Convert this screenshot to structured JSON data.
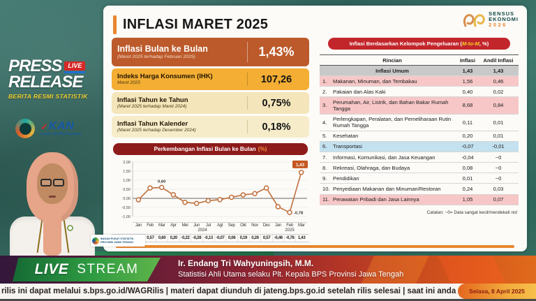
{
  "left_panel": {
    "press": "PRESS",
    "release": "RELEASE",
    "live_badge": "LIVE",
    "subtitle": "BERITA RESMI STATISTIK",
    "kan": "KAN",
    "kan_caption": "Komite Akreditasi Nasional",
    "bps_strip_line1": "BADAN PUSAT STATISTIK",
    "bps_strip_line2": "PROVINSI JAWA TENGAH"
  },
  "header": {
    "title": "INFLASI MARET 2025",
    "sensus_line1": "SENSUS",
    "sensus_line2": "EKONOMI",
    "sensus_year": "2026"
  },
  "stats": [
    {
      "label": "Inflasi Bulan ke Bulan",
      "sub": "(Maret 2025 terhadap Februari 2025)",
      "value": "1,43%"
    },
    {
      "label": "Indeks Harga Konsumen (IHK)",
      "sub": "Maret 2025",
      "value": "107,26"
    },
    {
      "label": "Inflasi Tahun ke Tahun",
      "sub": "(Maret 2025 terhadap Maret 2024)",
      "value": "0,75%"
    },
    {
      "label": "Inflasi Tahun Kalender",
      "sub": "(Maret 2025 terhadap Desember 2024)",
      "value": "0,18%"
    }
  ],
  "chart_data": {
    "type": "line",
    "title": "Perkembangan Inflasi Bulan ke Bulan",
    "title_pct": "(%)",
    "legend": "m-to-m",
    "x": [
      "Jan",
      "Feb",
      "Mar",
      "Apr",
      "Mei",
      "Jun",
      "Jul",
      "Agt",
      "Sep",
      "Okt",
      "Nov",
      "Des",
      "Jan",
      "Feb",
      "Mar"
    ],
    "year_groups": [
      {
        "label": "2024",
        "span": 12
      },
      {
        "label": "2025",
        "span": 3
      }
    ],
    "values": [
      -0.08,
      0.57,
      0.6,
      0.2,
      -0.22,
      -0.28,
      -0.13,
      -0.07,
      0.06,
      0.19,
      0.26,
      0.57,
      -0.46,
      -0.78,
      1.43
    ],
    "display_values": [
      "-0,08",
      "0,57",
      "0,60",
      "0,20",
      "-0,22",
      "-0,28",
      "-0,13",
      "-0,07",
      "0,06",
      "0,19",
      "0,26",
      "0,57",
      "-0,46",
      "-0,78",
      "1,43"
    ],
    "ylim": [
      -1.0,
      2.0
    ],
    "yticks": [
      2.0,
      1.5,
      1.0,
      0.5,
      0.0,
      -0.5,
      -1.0
    ],
    "ytick_labels": [
      "2,00",
      "1,50",
      "1,00",
      "0,50",
      "0,00",
      "-0,50",
      "-1,00"
    ],
    "grid": true,
    "line_color": "#c0703c",
    "annotations": [
      {
        "index": 2,
        "text": "0,60",
        "style": "above"
      },
      {
        "index": 13,
        "text": "-0,78",
        "style": "right"
      },
      {
        "index": 14,
        "text": "1,43",
        "style": "callout"
      }
    ]
  },
  "table": {
    "title_prefix": "Inflasi Berdasarkan Kelompok Pengeluaran (",
    "title_mtom": "M-to-M",
    "title_suffix": ", %)",
    "headers": {
      "rincian": "Rincian",
      "inflasi": "Inflasi",
      "andil": "Andil Inflasi"
    },
    "umum": {
      "name": "Inflasi Umum",
      "inflasi": "1,43",
      "andil": "1,43"
    },
    "rows": [
      {
        "no": "1.",
        "name": "Makanan, Minuman, dan Tembakau",
        "inflasi": "1,56",
        "andil": "0,46",
        "hl": "pink"
      },
      {
        "no": "2.",
        "name": "Pakaian dan Alas Kaki",
        "inflasi": "0,40",
        "andil": "0,02",
        "hl": "none"
      },
      {
        "no": "3.",
        "name": "Perumahan, Air, Listrik, dan Bahan Bakar Rumah Tangga",
        "inflasi": "8,68",
        "andil": "0,84",
        "hl": "pink"
      },
      {
        "no": "4.",
        "name": "Perlengkapan, Peralatan, dan Pemeliharaan Rutin Rumah Tangga",
        "inflasi": "0,11",
        "andil": "0,01",
        "hl": "none"
      },
      {
        "no": "5.",
        "name": "Kesehatan",
        "inflasi": "0,20",
        "andil": "0,01",
        "hl": "none"
      },
      {
        "no": "6.",
        "name": "Transportasi",
        "inflasi": "-0,07",
        "andil": "-0,01",
        "hl": "blue"
      },
      {
        "no": "7.",
        "name": "Informasi, Komunikasi, dan Jasa Keuangan",
        "inflasi": "-0,04",
        "andil": "~0",
        "hl": "none"
      },
      {
        "no": "8.",
        "name": "Rekreasi, Olahraga, dan Budaya",
        "inflasi": "0,08",
        "andil": "~0",
        "hl": "none"
      },
      {
        "no": "9.",
        "name": "Pendidikan",
        "inflasi": "0,01",
        "andil": "~0",
        "hl": "none"
      },
      {
        "no": "10.",
        "name": "Penyediaan Makanan dan Minuman/Restoran",
        "inflasi": "0,24",
        "andil": "0,03",
        "hl": "none"
      },
      {
        "no": "11.",
        "name": "Perawatan Pribadi dan Jasa Lainnya",
        "inflasi": "1,05",
        "andil": "0,07",
        "hl": "pink"
      }
    ],
    "note": "Catatan: ~0= Data sangat kecil/mendekati nol"
  },
  "banner": {
    "live": "LIVE",
    "stream": "STREAM",
    "speaker_name": "Ir. Endang Tri Wahyuningsih, M.M.",
    "speaker_title": "Statistisi Ahli Utama selaku Plt. Kepala BPS Provinsi Jawa Tengah"
  },
  "ticker": {
    "text": "rilis ini dapat melalui s.bps.go.id/WAGRilis  |  materi dapat diunduh di jateng.bps.go.id setelah rilis selesai  |  saat ini anda s",
    "date": "Selasa, 8 April 2025"
  },
  "colors": {
    "accent_orange": "#e8862e",
    "stat_dark_orange": "#bc5a2b",
    "stat_amber": "#f3ae33",
    "stat_cream": "#f4e5ba",
    "chart_header_red": "#8e1b1b",
    "table_pill_red": "#c2262b",
    "row_pink": "#f7c7c7",
    "row_blue": "#c3e1ef",
    "live_green": "#2f9c42"
  }
}
